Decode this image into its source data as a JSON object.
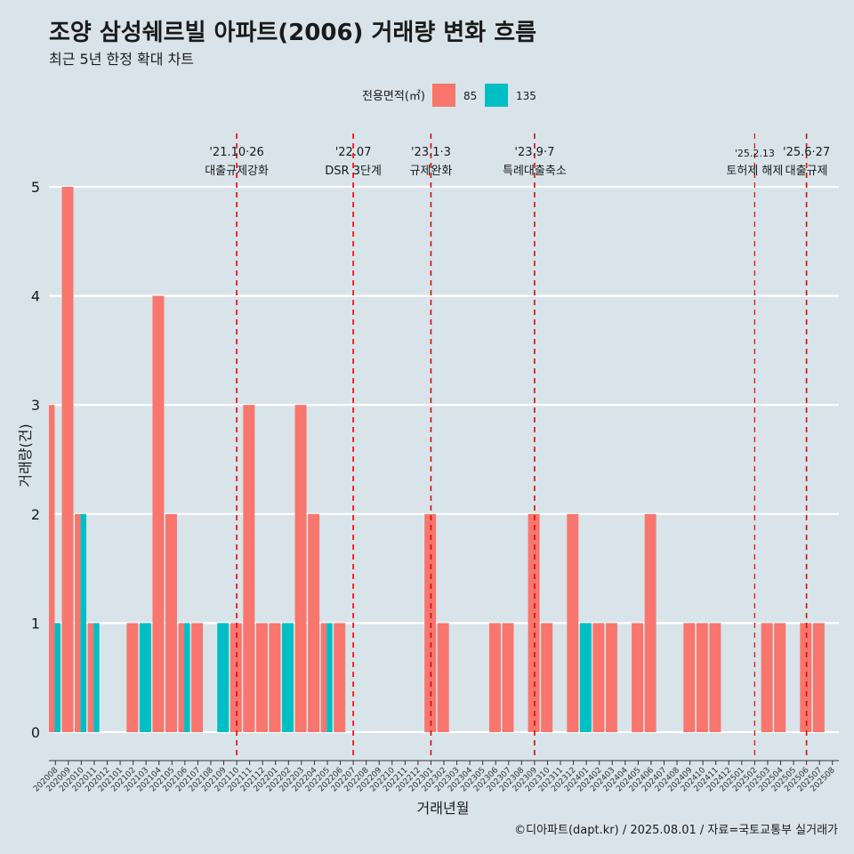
{
  "title": "조양 삼성쉐르빌 아파트(2006) 거래량 변화 흐름",
  "subtitle": "최근 5년 한정 확대 차트",
  "caption": "©디아파트(dapt.kr) / 2025.08.01 / 자료=국토교통부 실거래가",
  "colors": {
    "background": "#d8e4ea",
    "s85": "#f8766d",
    "s135": "#00bfc4",
    "event_line": "#ee0000",
    "grid": "#ffffff"
  },
  "chart_data": {
    "type": "bar",
    "xlabel": "거래년월",
    "ylabel": "거래량(건)",
    "ylim": [
      0,
      5
    ],
    "yticks": [
      0,
      1,
      2,
      3,
      4,
      5
    ],
    "grid": true,
    "legend": {
      "title": "전용면적(㎡)",
      "position": "top"
    },
    "categories": [
      "202008",
      "202009",
      "202010",
      "202011",
      "202012",
      "202101",
      "202102",
      "202103",
      "202104",
      "202105",
      "202106",
      "202107",
      "202108",
      "202109",
      "202110",
      "202111",
      "202112",
      "202201",
      "202202",
      "202203",
      "202204",
      "202205",
      "202206",
      "202207",
      "202208",
      "202209",
      "202210",
      "202211",
      "202212",
      "202301",
      "202302",
      "202303",
      "202304",
      "202305",
      "202306",
      "202307",
      "202308",
      "202309",
      "202310",
      "202311",
      "202312",
      "202401",
      "202402",
      "202403",
      "202404",
      "202405",
      "202406",
      "202407",
      "202408",
      "202409",
      "202410",
      "202411",
      "202412",
      "202501",
      "202502",
      "202503",
      "202504",
      "202505",
      "202506",
      "202507",
      "202508"
    ],
    "series": [
      {
        "name": "85",
        "color": "#f8766d",
        "values": [
          3,
          5,
          2,
          1,
          0,
          0,
          1,
          0,
          4,
          2,
          1,
          1,
          0,
          0,
          1,
          3,
          1,
          1,
          0,
          3,
          2,
          1,
          1,
          0,
          0,
          0,
          0,
          0,
          0,
          2,
          1,
          0,
          0,
          0,
          1,
          1,
          0,
          2,
          1,
          0,
          2,
          0,
          1,
          1,
          0,
          1,
          2,
          0,
          0,
          1,
          1,
          1,
          0,
          0,
          0,
          1,
          1,
          0,
          1,
          1,
          0
        ]
      },
      {
        "name": "135",
        "color": "#00bfc4",
        "values": [
          1,
          0,
          2,
          1,
          0,
          0,
          0,
          1,
          0,
          0,
          1,
          0,
          0,
          1,
          0,
          0,
          0,
          0,
          1,
          0,
          0,
          1,
          0,
          0,
          0,
          0,
          0,
          0,
          0,
          0,
          0,
          0,
          0,
          0,
          0,
          0,
          0,
          0,
          0,
          0,
          0,
          1,
          0,
          0,
          0,
          0,
          0,
          0,
          0,
          0,
          0,
          0,
          0,
          0,
          0,
          0,
          0,
          0,
          0,
          0,
          0
        ]
      }
    ],
    "events": [
      {
        "x": "202110",
        "date": "'21.10·26",
        "label": "대출규제강화"
      },
      {
        "x": "202207",
        "date": "'22.07",
        "label": "DSR 3단계"
      },
      {
        "x": "202301",
        "date": "'23.1·3",
        "label": "규제완화"
      },
      {
        "x": "202309",
        "date": "'23.9·7",
        "label": "특례대출축소"
      },
      {
        "x": "202502",
        "date": "'25.2.13",
        "label": "토허제 해제"
      },
      {
        "x": "202506",
        "date": "'25.6·27",
        "label": "대출규제"
      }
    ]
  }
}
